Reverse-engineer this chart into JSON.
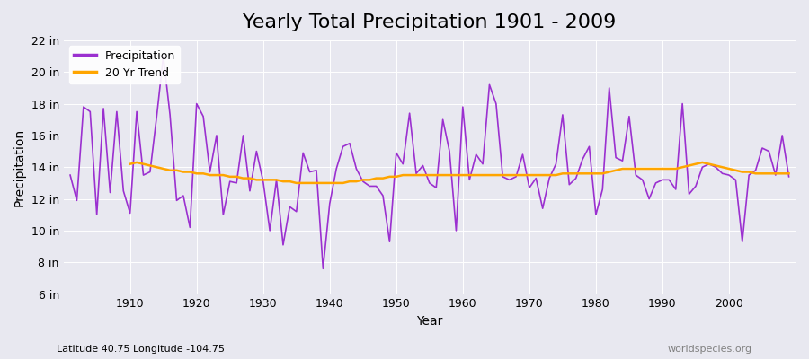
{
  "title": "Yearly Total Precipitation 1901 - 2009",
  "xlabel": "Year",
  "ylabel": "Precipitation",
  "subtitle": "Latitude 40.75 Longitude -104.75",
  "watermark": "worldspecies.org",
  "precip_color": "#9b30d0",
  "trend_color": "#FFA500",
  "background_color": "#e8e8f0",
  "plot_bg_color": "#e8e8f0",
  "years": [
    1901,
    1902,
    1903,
    1904,
    1905,
    1906,
    1907,
    1908,
    1909,
    1910,
    1911,
    1912,
    1913,
    1914,
    1915,
    1916,
    1917,
    1918,
    1919,
    1920,
    1921,
    1922,
    1923,
    1924,
    1925,
    1926,
    1927,
    1928,
    1929,
    1930,
    1931,
    1932,
    1933,
    1934,
    1935,
    1936,
    1937,
    1938,
    1939,
    1940,
    1941,
    1942,
    1943,
    1944,
    1945,
    1946,
    1947,
    1948,
    1949,
    1950,
    1951,
    1952,
    1953,
    1954,
    1955,
    1956,
    1957,
    1958,
    1959,
    1960,
    1961,
    1962,
    1963,
    1964,
    1965,
    1966,
    1967,
    1968,
    1969,
    1970,
    1971,
    1972,
    1973,
    1974,
    1975,
    1976,
    1977,
    1978,
    1979,
    1980,
    1981,
    1982,
    1983,
    1984,
    1985,
    1986,
    1987,
    1988,
    1989,
    1990,
    1991,
    1992,
    1993,
    1994,
    1995,
    1996,
    1997,
    1998,
    1999,
    2000,
    2001,
    2002,
    2003,
    2004,
    2005,
    2006,
    2007,
    2008,
    2009
  ],
  "precip": [
    13.5,
    11.9,
    17.8,
    17.5,
    11.0,
    17.7,
    12.4,
    17.5,
    12.5,
    11.1,
    17.5,
    13.5,
    13.7,
    17.2,
    21.0,
    17.3,
    11.9,
    12.2,
    10.2,
    18.0,
    17.2,
    13.7,
    16.0,
    11.0,
    13.1,
    13.0,
    16.0,
    12.5,
    15.0,
    13.1,
    10.0,
    13.2,
    9.1,
    11.5,
    11.2,
    14.9,
    13.7,
    13.8,
    7.6,
    11.7,
    13.9,
    15.3,
    15.5,
    13.9,
    13.1,
    12.8,
    12.8,
    12.2,
    9.3,
    14.9,
    14.2,
    17.4,
    13.6,
    14.1,
    13.0,
    12.7,
    17.0,
    15.0,
    10.0,
    17.8,
    13.2,
    14.8,
    14.2,
    19.2,
    18.0,
    13.4,
    13.2,
    13.4,
    14.8,
    12.7,
    13.3,
    11.4,
    13.3,
    14.2,
    17.3,
    12.9,
    13.3,
    14.5,
    15.3,
    11.0,
    12.6,
    19.0,
    14.6,
    14.4,
    17.2,
    13.5,
    13.2,
    12.0,
    13.0,
    13.2,
    13.2,
    12.6,
    18.0,
    12.3,
    12.8,
    14.0,
    14.2,
    14.0,
    13.6,
    13.5,
    13.2,
    9.3,
    13.5,
    13.8,
    15.2,
    15.0,
    13.5,
    16.0,
    13.4
  ],
  "trend": {
    "years": [
      1910,
      1911,
      1912,
      1913,
      1914,
      1915,
      1916,
      1917,
      1918,
      1919,
      1920,
      1921,
      1922,
      1923,
      1924,
      1925,
      1926,
      1927,
      1928,
      1929,
      1930,
      1931,
      1932,
      1933,
      1934,
      1935,
      1936,
      1937,
      1938,
      1939,
      1941,
      1942,
      1943,
      1944,
      1945,
      1946,
      1947,
      1948,
      1949,
      1950,
      1951,
      1952,
      1953,
      1954,
      1955,
      1956,
      1957,
      1958,
      1959,
      1960,
      1961,
      1962,
      1963,
      1964,
      1965,
      1966,
      1967,
      1968,
      1969,
      1970,
      1971,
      1972,
      1973,
      1974,
      1975,
      1976,
      1977,
      1978,
      1979,
      1980,
      1981,
      1982,
      1983,
      1984,
      1985,
      1986,
      1987,
      1988,
      1989,
      1990,
      1991,
      1992,
      1993,
      1994,
      1995,
      1996,
      1997,
      1998,
      1999,
      2000,
      2001,
      2002,
      2003,
      2004,
      2005,
      2006,
      2007,
      2008,
      2009
    ],
    "values": [
      14.2,
      14.3,
      14.2,
      14.1,
      14.0,
      13.9,
      13.8,
      13.8,
      13.7,
      13.7,
      13.6,
      13.6,
      13.5,
      13.5,
      13.5,
      13.4,
      13.4,
      13.3,
      13.3,
      13.2,
      13.2,
      13.2,
      13.2,
      13.1,
      13.1,
      13.0,
      13.0,
      13.0,
      13.0,
      13.0,
      13.0,
      13.0,
      13.1,
      13.1,
      13.2,
      13.2,
      13.3,
      13.3,
      13.4,
      13.4,
      13.5,
      13.5,
      13.5,
      13.5,
      13.5,
      13.5,
      13.5,
      13.5,
      13.5,
      13.5,
      13.5,
      13.5,
      13.5,
      13.5,
      13.5,
      13.5,
      13.5,
      13.5,
      13.5,
      13.5,
      13.5,
      13.5,
      13.5,
      13.5,
      13.6,
      13.6,
      13.6,
      13.6,
      13.6,
      13.6,
      13.6,
      13.7,
      13.8,
      13.9,
      13.9,
      13.9,
      13.9,
      13.9,
      13.9,
      13.9,
      13.9,
      13.9,
      14.0,
      14.1,
      14.2,
      14.3,
      14.2,
      14.1,
      14.0,
      13.9,
      13.8,
      13.7,
      13.7,
      13.6,
      13.6,
      13.6,
      13.6,
      13.6,
      13.6
    ]
  },
  "ylim": [
    6,
    22
  ],
  "yticks": [
    6,
    8,
    10,
    12,
    14,
    16,
    18,
    20,
    22
  ],
  "ytick_labels": [
    "6 in",
    "8 in",
    "10 in",
    "12 in",
    "14 in",
    "16 in",
    "18 in",
    "20 in",
    "22 in"
  ],
  "xlim": [
    1900,
    2010
  ],
  "xticks": [
    1910,
    1920,
    1930,
    1940,
    1950,
    1960,
    1970,
    1980,
    1990,
    2000
  ],
  "title_fontsize": 16,
  "label_fontsize": 10,
  "tick_fontsize": 9,
  "legend_fontsize": 9
}
